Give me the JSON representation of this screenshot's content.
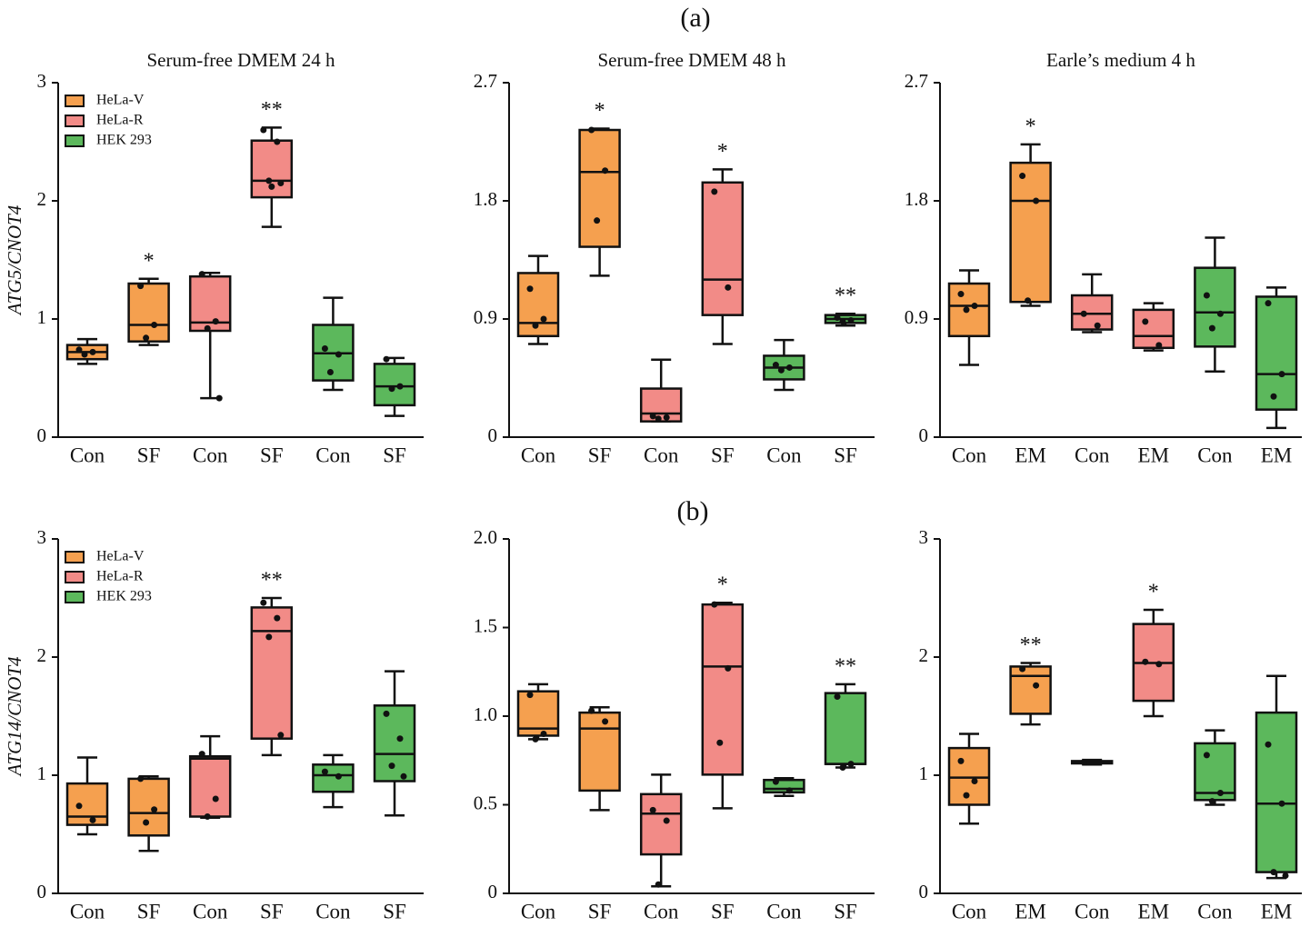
{
  "panel_labels": [
    "(a)",
    "(b)"
  ],
  "chart_data": [
    {
      "type": "box",
      "title": "Serum-free DMEM 24 h",
      "ylabel": "ATG5/CNOT4",
      "legend": "upper left",
      "categories": [
        "Con",
        "SF",
        "Con",
        "SF",
        "Con",
        "SF"
      ],
      "ylim": [
        0,
        3
      ],
      "yticks": [
        0,
        1,
        2,
        3
      ],
      "significance": [
        null,
        "*",
        null,
        "**",
        null,
        null
      ],
      "series": [
        {
          "name": "HeLa-V",
          "color": "#f5a04f",
          "boxes": [
            {
              "min": 0.62,
              "q1": 0.66,
              "median": 0.72,
              "q3": 0.78,
              "max": 0.83,
              "points": [
                0.74,
                0.72,
                0.7
              ]
            },
            {
              "min": 0.78,
              "q1": 0.81,
              "median": 0.95,
              "q3": 1.3,
              "max": 1.34,
              "points": [
                1.28,
                0.95,
                0.84
              ]
            }
          ]
        },
        {
          "name": "HeLa-R",
          "color": "#f28b87",
          "boxes": [
            {
              "min": 0.33,
              "q1": 0.9,
              "median": 0.97,
              "q3": 1.36,
              "max": 1.39,
              "points": [
                1.38,
                0.98,
                0.92,
                0.33
              ]
            },
            {
              "min": 1.78,
              "q1": 2.03,
              "median": 2.17,
              "q3": 2.51,
              "max": 2.62,
              "points": [
                2.6,
                2.5,
                2.17,
                2.15,
                2.12
              ]
            }
          ]
        },
        {
          "name": "HEK 293",
          "color": "#5cb85c",
          "boxes": [
            {
              "min": 0.4,
              "q1": 0.48,
              "median": 0.71,
              "q3": 0.95,
              "max": 1.18,
              "points": [
                0.75,
                0.7,
                0.55
              ]
            },
            {
              "min": 0.18,
              "q1": 0.27,
              "median": 0.43,
              "q3": 0.62,
              "max": 0.67,
              "points": [
                0.66,
                0.43,
                0.41
              ]
            }
          ]
        }
      ]
    },
    {
      "type": "box",
      "title": "Serum-free DMEM 48 h",
      "categories": [
        "Con",
        "SF",
        "Con",
        "SF",
        "Con",
        "SF"
      ],
      "ylim": [
        0,
        2.7
      ],
      "yticks": [
        0,
        0.9,
        1.8,
        2.7
      ],
      "significance": [
        null,
        "*",
        null,
        "*",
        null,
        "**"
      ],
      "series": [
        {
          "color": "#f5a04f",
          "boxes": [
            {
              "min": 0.71,
              "q1": 0.77,
              "median": 0.87,
              "q3": 1.25,
              "max": 1.38,
              "points": [
                1.13,
                0.9,
                0.85
              ]
            },
            {
              "min": 1.23,
              "q1": 1.45,
              "median": 2.02,
              "q3": 2.34,
              "max": 2.35,
              "points": [
                2.34,
                2.03,
                1.65
              ]
            }
          ]
        },
        {
          "color": "#f28b87",
          "boxes": [
            {
              "min": 0.12,
              "q1": 0.12,
              "median": 0.18,
              "q3": 0.37,
              "max": 0.59,
              "points": [
                0.16,
                0.15,
                0.14
              ]
            },
            {
              "min": 0.71,
              "q1": 0.93,
              "median": 1.2,
              "q3": 1.94,
              "max": 2.04,
              "points": [
                1.87,
                1.14
              ]
            }
          ]
        },
        {
          "color": "#5cb85c",
          "boxes": [
            {
              "min": 0.36,
              "q1": 0.44,
              "median": 0.53,
              "q3": 0.62,
              "max": 0.74,
              "points": [
                0.55,
                0.53,
                0.51
              ]
            },
            {
              "min": 0.85,
              "q1": 0.87,
              "median": 0.9,
              "q3": 0.93,
              "max": 0.94,
              "points": [
                0.91,
                0.89,
                0.88
              ]
            }
          ]
        }
      ]
    },
    {
      "type": "box",
      "title": "Earle’s medium 4 h",
      "categories": [
        "Con",
        "EM",
        "Con",
        "EM",
        "Con",
        "EM"
      ],
      "ylim": [
        0,
        2.7
      ],
      "yticks": [
        0,
        0.9,
        1.8,
        2.7
      ],
      "significance": [
        null,
        "*",
        null,
        null,
        null,
        null
      ],
      "series": [
        {
          "color": "#f5a04f",
          "boxes": [
            {
              "min": 0.55,
              "q1": 0.77,
              "median": 1.0,
              "q3": 1.17,
              "max": 1.27,
              "points": [
                1.09,
                1.0,
                0.97
              ]
            },
            {
              "min": 1.0,
              "q1": 1.03,
              "median": 1.8,
              "q3": 2.09,
              "max": 2.23,
              "points": [
                1.99,
                1.8,
                1.04
              ]
            }
          ]
        },
        {
          "color": "#f28b87",
          "boxes": [
            {
              "min": 0.8,
              "q1": 0.82,
              "median": 0.94,
              "q3": 1.08,
              "max": 1.24,
              "points": [
                0.94,
                0.85
              ]
            },
            {
              "min": 0.66,
              "q1": 0.68,
              "median": 0.77,
              "q3": 0.97,
              "max": 1.02,
              "points": [
                0.88,
                0.7
              ]
            }
          ]
        },
        {
          "color": "#5cb85c",
          "boxes": [
            {
              "min": 0.5,
              "q1": 0.69,
              "median": 0.95,
              "q3": 1.29,
              "max": 1.52,
              "points": [
                1.08,
                0.94,
                0.83
              ]
            },
            {
              "min": 0.07,
              "q1": 0.21,
              "median": 0.48,
              "q3": 1.07,
              "max": 1.14,
              "points": [
                1.02,
                0.48,
                0.31
              ]
            }
          ]
        }
      ]
    },
    {
      "type": "box",
      "ylabel": "ATG14/CNOT4",
      "legend": "upper left",
      "categories": [
        "Con",
        "SF",
        "Con",
        "SF",
        "Con",
        "SF"
      ],
      "ylim": [
        0,
        3
      ],
      "yticks": [
        0,
        1,
        2,
        3
      ],
      "significance": [
        null,
        null,
        null,
        "**",
        null,
        null
      ],
      "series": [
        {
          "name": "HeLa-V",
          "color": "#f5a04f",
          "boxes": [
            {
              "min": 0.5,
              "q1": 0.58,
              "median": 0.65,
              "q3": 0.93,
              "max": 1.15,
              "points": [
                0.74,
                0.62
              ]
            },
            {
              "min": 0.36,
              "q1": 0.49,
              "median": 0.68,
              "q3": 0.97,
              "max": 0.99,
              "points": [
                0.97,
                0.71,
                0.6
              ]
            }
          ]
        },
        {
          "name": "HeLa-R",
          "color": "#f28b87",
          "boxes": [
            {
              "min": 0.64,
              "q1": 0.65,
              "median": 1.14,
              "q3": 1.16,
              "max": 1.33,
              "points": [
                1.18,
                0.8,
                0.65
              ]
            },
            {
              "min": 1.17,
              "q1": 1.31,
              "median": 2.22,
              "q3": 2.42,
              "max": 2.5,
              "points": [
                2.46,
                2.33,
                2.17,
                1.34
              ]
            }
          ]
        },
        {
          "name": "HEK 293",
          "color": "#5cb85c",
          "boxes": [
            {
              "min": 0.73,
              "q1": 0.86,
              "median": 1.0,
              "q3": 1.09,
              "max": 1.17,
              "points": [
                1.03,
                0.99
              ]
            },
            {
              "min": 0.66,
              "q1": 0.95,
              "median": 1.18,
              "q3": 1.59,
              "max": 1.88,
              "points": [
                1.52,
                1.31,
                1.08,
                0.99
              ]
            }
          ]
        }
      ]
    },
    {
      "type": "box",
      "categories": [
        "Con",
        "SF",
        "Con",
        "SF",
        "Con",
        "SF"
      ],
      "ylim": [
        0,
        2
      ],
      "yticks": [
        0,
        0.5,
        {
          "value": 1,
          "label": "1.0"
        },
        1.5,
        {
          "value": 2,
          "label": "2.0"
        }
      ],
      "significance": [
        null,
        null,
        null,
        "*",
        null,
        "**"
      ],
      "series": [
        {
          "color": "#f5a04f",
          "boxes": [
            {
              "min": 0.87,
              "q1": 0.89,
              "median": 0.93,
              "q3": 1.14,
              "max": 1.18,
              "points": [
                1.12,
                0.9,
                0.87
              ]
            },
            {
              "min": 0.47,
              "q1": 0.58,
              "median": 0.93,
              "q3": 1.02,
              "max": 1.05,
              "points": [
                1.03,
                0.97
              ]
            }
          ]
        },
        {
          "color": "#f28b87",
          "boxes": [
            {
              "min": 0.04,
              "q1": 0.22,
              "median": 0.45,
              "q3": 0.56,
              "max": 0.67,
              "points": [
                0.47,
                0.41,
                0.05
              ]
            },
            {
              "min": 0.48,
              "q1": 0.67,
              "median": 1.28,
              "q3": 1.63,
              "max": 1.64,
              "points": [
                1.63,
                1.27,
                0.85
              ]
            }
          ]
        },
        {
          "color": "#5cb85c",
          "boxes": [
            {
              "min": 0.55,
              "q1": 0.57,
              "median": 0.59,
              "q3": 0.64,
              "max": 0.65,
              "points": [
                0.63,
                0.58
              ]
            },
            {
              "min": 0.71,
              "q1": 0.73,
              "median": 0.73,
              "q3": 1.13,
              "max": 1.18,
              "points": [
                1.11,
                0.73,
                0.71
              ]
            }
          ]
        }
      ]
    },
    {
      "type": "box",
      "categories": [
        "Con",
        "EM",
        "Con",
        "EM",
        "Con",
        "EM"
      ],
      "ylim": [
        0,
        3
      ],
      "yticks": [
        0,
        1,
        2,
        3
      ],
      "significance": [
        null,
        "**",
        null,
        "*",
        null,
        null
      ],
      "series": [
        {
          "color": "#f5a04f",
          "boxes": [
            {
              "min": 0.59,
              "q1": 0.75,
              "median": 0.98,
              "q3": 1.23,
              "max": 1.35,
              "points": [
                1.12,
                0.95,
                0.83
              ]
            },
            {
              "min": 1.43,
              "q1": 1.52,
              "median": 1.84,
              "q3": 1.92,
              "max": 1.95,
              "points": [
                1.9,
                1.76
              ]
            }
          ]
        },
        {
          "color": "#f28b87",
          "boxes": [
            {
              "min": 1.09,
              "q1": 1.1,
              "median": 1.11,
              "q3": 1.12,
              "max": 1.13,
              "points": [
                1.11
              ]
            },
            {
              "min": 1.5,
              "q1": 1.63,
              "median": 1.95,
              "q3": 2.28,
              "max": 2.4,
              "points": [
                1.96,
                1.94
              ]
            }
          ]
        },
        {
          "color": "#5cb85c",
          "boxes": [
            {
              "min": 0.75,
              "q1": 0.79,
              "median": 0.85,
              "q3": 1.27,
              "max": 1.38,
              "points": [
                1.17,
                0.85,
                0.78
              ]
            },
            {
              "min": 0.13,
              "q1": 0.18,
              "median": 0.76,
              "q3": 1.53,
              "max": 1.84,
              "points": [
                1.26,
                0.76,
                0.18,
                0.15
              ]
            }
          ]
        }
      ]
    }
  ]
}
